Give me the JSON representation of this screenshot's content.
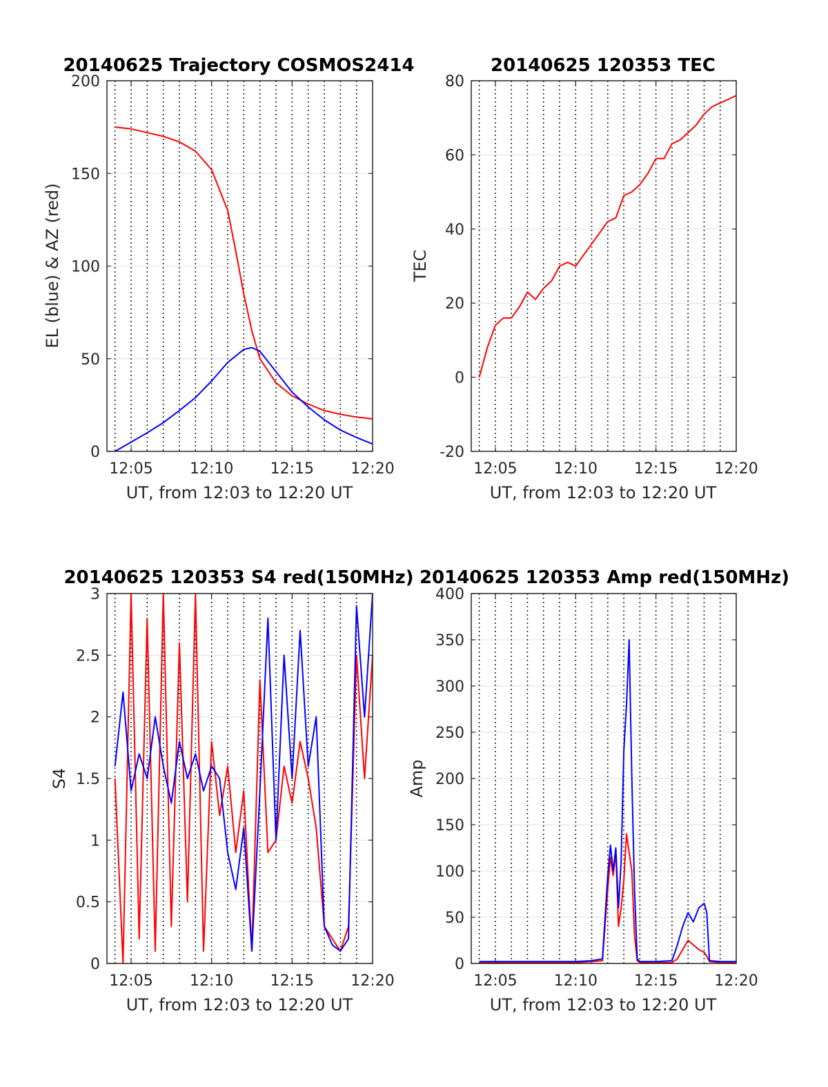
{
  "chart_data": [
    {
      "type": "line",
      "title": "20140625 Trajectory COSMOS2414",
      "xlabel": "UT, from 12:03 to 12:20 UT",
      "ylabel": "EL (blue) & AZ (red)",
      "xlim": [
        "12:03:30",
        "12:20:00"
      ],
      "ylim": [
        0,
        200
      ],
      "xticks": [
        "12:05",
        "12:10",
        "12:15",
        "12:20"
      ],
      "yticks": [
        "0",
        "50",
        "100",
        "150",
        "200"
      ],
      "grid": "dotted vertical every 1 min, light horizontal at y ticks",
      "series": [
        {
          "color": "#ff0000",
          "x": [
            "12:04",
            "12:05",
            "12:06",
            "12:07",
            "12:08",
            "12:09",
            "12:10",
            "12:11",
            "12:11:30",
            "12:12",
            "12:12:30",
            "12:13",
            "12:14",
            "12:15",
            "12:16",
            "12:17",
            "12:18",
            "12:19",
            "12:20"
          ],
          "values": [
            175,
            174,
            172,
            170,
            167,
            162,
            152,
            130,
            108,
            85,
            65,
            50,
            37,
            30,
            25.5,
            22,
            20,
            18.5,
            17.5
          ]
        },
        {
          "color": "#0000ff",
          "x": [
            "12:04",
            "12:05",
            "12:06",
            "12:07",
            "12:08",
            "12:09",
            "12:10",
            "12:11",
            "12:12",
            "12:12:30",
            "12:13",
            "12:14",
            "12:15",
            "12:16",
            "12:17",
            "12:18",
            "12:19",
            "12:20"
          ],
          "values": [
            0,
            5,
            10,
            15.5,
            22,
            29,
            38,
            48,
            55,
            56,
            54,
            43,
            32,
            24,
            17,
            11.5,
            7.5,
            4
          ]
        }
      ]
    },
    {
      "type": "line",
      "title": "20140625 120353 TEC",
      "xlabel": "UT, from 12:03 to 12:20 UT",
      "ylabel": "TEC",
      "xlim": [
        "12:03:30",
        "12:20:00"
      ],
      "ylim": [
        -20,
        80
      ],
      "xticks": [
        "12:05",
        "12:10",
        "12:15",
        "12:20"
      ],
      "yticks": [
        "-20",
        "0",
        "20",
        "40",
        "60",
        "80"
      ],
      "series": [
        {
          "color": "#ff0000",
          "x": [
            "12:04",
            "12:04:30",
            "12:05",
            "12:05:30",
            "12:06",
            "12:06:30",
            "12:07",
            "12:07:30",
            "12:08",
            "12:08:30",
            "12:09",
            "12:09:30",
            "12:10",
            "12:10:30",
            "12:11",
            "12:11:30",
            "12:12",
            "12:12:30",
            "12:13",
            "12:13:30",
            "12:14",
            "12:14:30",
            "12:15",
            "12:15:30",
            "12:16",
            "12:16:30",
            "12:17",
            "12:17:30",
            "12:18",
            "12:18:30",
            "12:19",
            "12:19:30",
            "12:20"
          ],
          "values": [
            0,
            8,
            14,
            16,
            16,
            19,
            23,
            21,
            24,
            26,
            30,
            31,
            30,
            33,
            36,
            39,
            42,
            43,
            49,
            50,
            52,
            55,
            59,
            59,
            63,
            64,
            66,
            68,
            71,
            73,
            74,
            75,
            76
          ]
        }
      ]
    },
    {
      "type": "line",
      "title": "20140625 120353 S4 red(150MHz)",
      "xlabel": "UT, from 12:03 to 12:20 UT",
      "ylabel": "S4",
      "xlim": [
        "12:03:30",
        "12:20:00"
      ],
      "ylim": [
        0,
        3
      ],
      "xticks": [
        "12:05",
        "12:10",
        "12:15",
        "12:20"
      ],
      "yticks": [
        "0",
        "0.5",
        "1",
        "1.5",
        "2",
        "2.5",
        "3"
      ],
      "series": [
        {
          "color": "#ff0000",
          "x": [
            "12:04",
            "12:04:30",
            "12:05",
            "12:05:30",
            "12:06",
            "12:06:30",
            "12:07",
            "12:07:30",
            "12:08",
            "12:08:30",
            "12:09",
            "12:09:30",
            "12:10",
            "12:10:30",
            "12:11",
            "12:11:30",
            "12:12",
            "12:12:30",
            "12:13",
            "12:13:30",
            "12:14",
            "12:14:30",
            "12:15",
            "12:15:30",
            "12:16",
            "12:16:30",
            "12:17",
            "12:17:30",
            "12:18",
            "12:18:30",
            "12:19",
            "12:19:30",
            "12:20"
          ],
          "values": [
            1.5,
            0,
            3,
            0.2,
            2.8,
            0.1,
            3,
            0.3,
            2.6,
            0.5,
            3,
            0.1,
            1.8,
            1.2,
            1.6,
            0.9,
            1.4,
            0.1,
            2.3,
            0.9,
            1.0,
            1.6,
            1.3,
            1.8,
            1.5,
            1.1,
            0.3,
            0.2,
            0.1,
            0.3,
            2.5,
            1.5,
            2.5
          ]
        },
        {
          "color": "#0000ff",
          "x": [
            "12:04",
            "12:04:30",
            "12:05",
            "12:05:30",
            "12:06",
            "12:06:30",
            "12:07",
            "12:07:30",
            "12:08",
            "12:08:30",
            "12:09",
            "12:09:30",
            "12:10",
            "12:10:30",
            "12:11",
            "12:11:30",
            "12:12",
            "12:12:30",
            "12:13",
            "12:13:30",
            "12:14",
            "12:14:30",
            "12:15",
            "12:15:30",
            "12:16",
            "12:16:30",
            "12:17",
            "12:17:30",
            "12:18",
            "12:18:30",
            "12:19",
            "12:19:30",
            "12:20"
          ],
          "values": [
            1.6,
            2.2,
            1.4,
            1.7,
            1.5,
            2.0,
            1.6,
            1.3,
            1.8,
            1.5,
            1.7,
            1.4,
            1.6,
            1.5,
            0.9,
            0.6,
            1.1,
            0.1,
            1.4,
            2.8,
            1.0,
            2.5,
            1.5,
            2.7,
            1.6,
            2.0,
            0.3,
            0.15,
            0.1,
            0.2,
            2.9,
            2.0,
            3.0
          ]
        }
      ]
    },
    {
      "type": "line",
      "title": "20140625 120353 Amp red(150MHz)",
      "xlabel": "UT, from 12:03 to 12:20 UT",
      "ylabel": "Amp",
      "xlim": [
        "12:03:30",
        "12:20:00"
      ],
      "ylim": [
        0,
        400
      ],
      "xticks": [
        "12:05",
        "12:10",
        "12:15",
        "12:20"
      ],
      "yticks": [
        "0",
        "50",
        "100",
        "150",
        "200",
        "250",
        "300",
        "350",
        "400"
      ],
      "series": [
        {
          "color": "#ff0000",
          "x": [
            "12:04",
            "12:06",
            "12:08",
            "12:10",
            "12:11",
            "12:11:40",
            "12:12",
            "12:12:10",
            "12:12:20",
            "12:12:30",
            "12:12:40",
            "12:12:50",
            "12:13",
            "12:13:10",
            "12:13:20",
            "12:13:30",
            "12:13:40",
            "12:13:50",
            "12:14",
            "12:15",
            "12:16",
            "12:16:20",
            "12:16:40",
            "12:17",
            "12:17:20",
            "12:17:40",
            "12:18",
            "12:18:10",
            "12:18:20",
            "12:19",
            "12:20"
          ],
          "values": [
            1,
            1,
            1,
            1,
            2,
            3,
            80,
            115,
            95,
            120,
            40,
            60,
            90,
            140,
            120,
            100,
            30,
            3,
            1,
            1,
            1,
            5,
            15,
            25,
            20,
            15,
            12,
            8,
            2,
            1,
            1
          ]
        },
        {
          "color": "#0000ff",
          "x": [
            "12:04",
            "12:06",
            "12:08",
            "12:10",
            "12:11",
            "12:11:40",
            "12:12",
            "12:12:10",
            "12:12:20",
            "12:12:30",
            "12:12:40",
            "12:12:50",
            "12:13",
            "12:13:10",
            "12:13:20",
            "12:13:30",
            "12:13:40",
            "12:13:50",
            "12:14",
            "12:15",
            "12:16",
            "12:16:20",
            "12:16:40",
            "12:17",
            "12:17:20",
            "12:17:40",
            "12:18",
            "12:18:10",
            "12:18:20",
            "12:19",
            "12:20"
          ],
          "values": [
            2,
            2,
            2,
            2,
            3,
            5,
            95,
            128,
            100,
            125,
            60,
            110,
            230,
            280,
            350,
            200,
            80,
            5,
            2,
            2,
            3,
            20,
            40,
            55,
            45,
            60,
            65,
            55,
            3,
            2,
            2
          ]
        }
      ]
    }
  ]
}
